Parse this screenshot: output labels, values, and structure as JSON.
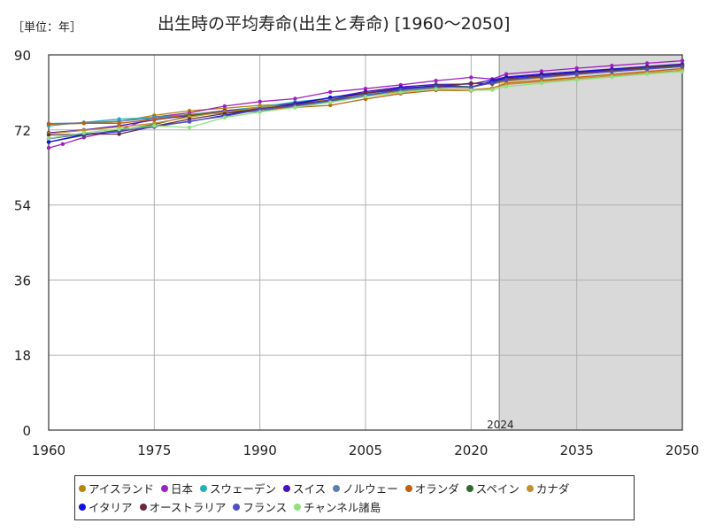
{
  "unit_label": "［単位：年］",
  "chart_data": {
    "type": "line",
    "title": "出生時の平均寿命(出生と寿命) [1960〜2050]",
    "xlabel": "",
    "ylabel": "",
    "xlim": [
      1960,
      2050
    ],
    "ylim": [
      0,
      90
    ],
    "x_ticks": [
      1960,
      1975,
      1990,
      2005,
      2020,
      2035,
      2050
    ],
    "y_ticks": [
      0,
      18,
      36,
      54,
      72,
      90
    ],
    "forecast_start": 2024,
    "forecast_label": "2024",
    "grid": true,
    "legend_position": "bottom",
    "series": [
      {
        "name": "アイスランド",
        "color": "#b8860b",
        "points": [
          [
            1960,
            73.4
          ],
          [
            1965,
            73.6
          ],
          [
            1970,
            74.0
          ],
          [
            1975,
            75.5
          ],
          [
            1980,
            76.6
          ],
          [
            1985,
            77.2
          ],
          [
            1990,
            77.9
          ],
          [
            1995,
            78.2
          ],
          [
            2000,
            79.6
          ],
          [
            2005,
            81.2
          ],
          [
            2010,
            81.7
          ],
          [
            2015,
            82.5
          ],
          [
            2020,
            83.1
          ],
          [
            2023,
            83.0
          ],
          [
            2025,
            83.7
          ],
          [
            2030,
            84.5
          ],
          [
            2035,
            85.3
          ],
          [
            2040,
            86.0
          ],
          [
            2045,
            86.7
          ],
          [
            2050,
            87.3
          ]
        ]
      },
      {
        "name": "日本",
        "color": "#a020c0",
        "points": [
          [
            1960,
            67.7
          ],
          [
            1962,
            68.6
          ],
          [
            1965,
            70.2
          ],
          [
            1970,
            72.0
          ],
          [
            1975,
            75.1
          ],
          [
            1980,
            76.1
          ],
          [
            1985,
            77.7
          ],
          [
            1990,
            78.8
          ],
          [
            1995,
            79.5
          ],
          [
            2000,
            81.1
          ],
          [
            2005,
            81.9
          ],
          [
            2010,
            82.8
          ],
          [
            2015,
            83.8
          ],
          [
            2020,
            84.6
          ],
          [
            2023,
            84.2
          ],
          [
            2025,
            85.4
          ],
          [
            2030,
            86.1
          ],
          [
            2035,
            86.8
          ],
          [
            2040,
            87.4
          ],
          [
            2045,
            88.0
          ],
          [
            2050,
            88.6
          ]
        ]
      },
      {
        "name": "スウェーデン",
        "color": "#20b0c0",
        "points": [
          [
            1960,
            73.0
          ],
          [
            1965,
            73.8
          ],
          [
            1970,
            74.6
          ],
          [
            1975,
            75.0
          ],
          [
            1980,
            75.7
          ],
          [
            1985,
            76.6
          ],
          [
            1990,
            77.5
          ],
          [
            1995,
            78.7
          ],
          [
            2000,
            79.6
          ],
          [
            2005,
            80.5
          ],
          [
            2010,
            81.4
          ],
          [
            2015,
            82.2
          ],
          [
            2020,
            82.4
          ],
          [
            2023,
            83.2
          ],
          [
            2025,
            84.2
          ],
          [
            2030,
            84.9
          ],
          [
            2035,
            85.6
          ],
          [
            2040,
            86.2
          ],
          [
            2045,
            86.8
          ],
          [
            2050,
            87.4
          ]
        ]
      },
      {
        "name": "スイス",
        "color": "#4a10c0",
        "points": [
          [
            1960,
            71.3
          ],
          [
            1965,
            72.0
          ],
          [
            1970,
            73.0
          ],
          [
            1975,
            74.4
          ],
          [
            1980,
            75.5
          ],
          [
            1985,
            76.6
          ],
          [
            1990,
            77.2
          ],
          [
            1995,
            78.4
          ],
          [
            2000,
            79.7
          ],
          [
            2005,
            81.2
          ],
          [
            2010,
            82.3
          ],
          [
            2015,
            82.9
          ],
          [
            2020,
            83.0
          ],
          [
            2023,
            84.0
          ],
          [
            2025,
            84.7
          ],
          [
            2030,
            85.4
          ],
          [
            2035,
            86.0
          ],
          [
            2040,
            86.6
          ],
          [
            2045,
            87.2
          ],
          [
            2050,
            87.8
          ]
        ]
      },
      {
        "name": "ノルウェー",
        "color": "#5a80b0",
        "points": [
          [
            1960,
            73.5
          ],
          [
            1965,
            73.7
          ],
          [
            1970,
            74.1
          ],
          [
            1975,
            74.8
          ],
          [
            1980,
            75.7
          ],
          [
            1985,
            76.0
          ],
          [
            1990,
            76.5
          ],
          [
            1995,
            77.7
          ],
          [
            2000,
            78.7
          ],
          [
            2005,
            80.0
          ],
          [
            2010,
            81.0
          ],
          [
            2015,
            82.1
          ],
          [
            2020,
            83.2
          ],
          [
            2023,
            83.1
          ],
          [
            2025,
            84.0
          ],
          [
            2030,
            84.7
          ],
          [
            2035,
            85.4
          ],
          [
            2040,
            86.0
          ],
          [
            2045,
            86.6
          ],
          [
            2050,
            87.2
          ]
        ]
      },
      {
        "name": "オランダ",
        "color": "#c06010",
        "points": [
          [
            1960,
            73.4
          ],
          [
            1965,
            73.6
          ],
          [
            1970,
            73.6
          ],
          [
            1975,
            74.5
          ],
          [
            1980,
            75.7
          ],
          [
            1985,
            76.3
          ],
          [
            1990,
            76.9
          ],
          [
            1995,
            77.4
          ],
          [
            2000,
            77.9
          ],
          [
            2005,
            79.4
          ],
          [
            2010,
            80.7
          ],
          [
            2015,
            81.5
          ],
          [
            2020,
            81.4
          ],
          [
            2023,
            82.0
          ],
          [
            2025,
            83.2
          ],
          [
            2030,
            83.9
          ],
          [
            2035,
            84.6
          ],
          [
            2040,
            85.3
          ],
          [
            2045,
            86.0
          ],
          [
            2050,
            86.7
          ]
        ]
      },
      {
        "name": "スペイン",
        "color": "#2d6b2d",
        "points": [
          [
            1960,
            69.1
          ],
          [
            1965,
            70.7
          ],
          [
            1970,
            72.0
          ],
          [
            1975,
            73.3
          ],
          [
            1980,
            75.4
          ],
          [
            1985,
            76.3
          ],
          [
            1990,
            76.9
          ],
          [
            1995,
            77.9
          ],
          [
            2000,
            79.0
          ],
          [
            2005,
            80.2
          ],
          [
            2010,
            81.6
          ],
          [
            2015,
            82.8
          ],
          [
            2020,
            82.3
          ],
          [
            2023,
            83.5
          ],
          [
            2025,
            84.2
          ],
          [
            2030,
            84.9
          ],
          [
            2035,
            85.6
          ],
          [
            2040,
            86.2
          ],
          [
            2045,
            86.8
          ],
          [
            2050,
            87.4
          ]
        ]
      },
      {
        "name": "カナダ",
        "color": "#c09030",
        "points": [
          [
            1960,
            71.1
          ],
          [
            1965,
            71.9
          ],
          [
            1970,
            72.7
          ],
          [
            1975,
            73.6
          ],
          [
            1980,
            75.1
          ],
          [
            1985,
            76.3
          ],
          [
            1990,
            77.4
          ],
          [
            1995,
            78.0
          ],
          [
            2000,
            79.2
          ],
          [
            2005,
            80.1
          ],
          [
            2010,
            81.2
          ],
          [
            2015,
            81.9
          ],
          [
            2020,
            81.7
          ],
          [
            2023,
            82.0
          ],
          [
            2025,
            82.9
          ],
          [
            2030,
            83.6
          ],
          [
            2035,
            84.3
          ],
          [
            2040,
            85.0
          ],
          [
            2045,
            85.7
          ],
          [
            2050,
            86.3
          ]
        ]
      },
      {
        "name": "イタリア",
        "color": "#1010e0",
        "points": [
          [
            1960,
            69.1
          ],
          [
            1965,
            70.9
          ],
          [
            1970,
            71.6
          ],
          [
            1975,
            72.9
          ],
          [
            1980,
            74.0
          ],
          [
            1985,
            75.5
          ],
          [
            1990,
            76.9
          ],
          [
            1995,
            78.2
          ],
          [
            2000,
            79.8
          ],
          [
            2005,
            80.8
          ],
          [
            2010,
            82.0
          ],
          [
            2015,
            82.5
          ],
          [
            2020,
            82.2
          ],
          [
            2023,
            83.7
          ],
          [
            2025,
            84.5
          ],
          [
            2030,
            85.2
          ],
          [
            2035,
            85.9
          ],
          [
            2040,
            86.5
          ],
          [
            2045,
            87.1
          ],
          [
            2050,
            87.7
          ]
        ]
      },
      {
        "name": "オーストラリア",
        "color": "#6b2a3a",
        "points": [
          [
            1960,
            70.8
          ],
          [
            1965,
            71.0
          ],
          [
            1970,
            71.0
          ],
          [
            1975,
            72.9
          ],
          [
            1980,
            74.6
          ],
          [
            1985,
            75.9
          ],
          [
            1990,
            77.0
          ],
          [
            1995,
            78.1
          ],
          [
            2000,
            79.2
          ],
          [
            2005,
            80.8
          ],
          [
            2010,
            81.7
          ],
          [
            2015,
            82.4
          ],
          [
            2020,
            83.2
          ],
          [
            2023,
            83.1
          ],
          [
            2025,
            84.2
          ],
          [
            2030,
            84.9
          ],
          [
            2035,
            85.6
          ],
          [
            2040,
            86.3
          ],
          [
            2045,
            87.0
          ],
          [
            2050,
            87.6
          ]
        ]
      },
      {
        "name": "フランス",
        "color": "#5050c0",
        "points": [
          [
            1960,
            69.9
          ],
          [
            1965,
            71.0
          ],
          [
            1970,
            71.7
          ],
          [
            1975,
            72.7
          ],
          [
            1980,
            74.1
          ],
          [
            1985,
            75.3
          ],
          [
            1990,
            76.9
          ],
          [
            1995,
            77.8
          ],
          [
            2000,
            79.1
          ],
          [
            2005,
            80.2
          ],
          [
            2010,
            81.7
          ],
          [
            2015,
            82.3
          ],
          [
            2020,
            82.2
          ],
          [
            2023,
            83.3
          ],
          [
            2025,
            84.0
          ],
          [
            2030,
            84.7
          ],
          [
            2035,
            85.4
          ],
          [
            2040,
            86.0
          ],
          [
            2045,
            86.6
          ],
          [
            2050,
            87.2
          ]
        ]
      },
      {
        "name": "チャンネル諸島",
        "color": "#90e080",
        "points": [
          [
            1960,
            70.0
          ],
          [
            1965,
            71.3
          ],
          [
            1970,
            72.2
          ],
          [
            1975,
            73.0
          ],
          [
            1980,
            72.6
          ],
          [
            1985,
            75.0
          ],
          [
            1990,
            76.3
          ],
          [
            1995,
            77.4
          ],
          [
            2000,
            78.6
          ],
          [
            2005,
            80.0
          ],
          [
            2010,
            81.0
          ],
          [
            2015,
            81.8
          ],
          [
            2020,
            81.5
          ],
          [
            2023,
            81.6
          ],
          [
            2025,
            82.4
          ],
          [
            2030,
            83.2
          ],
          [
            2035,
            84.0
          ],
          [
            2040,
            84.7
          ],
          [
            2045,
            85.4
          ],
          [
            2050,
            86.0
          ]
        ]
      }
    ]
  }
}
